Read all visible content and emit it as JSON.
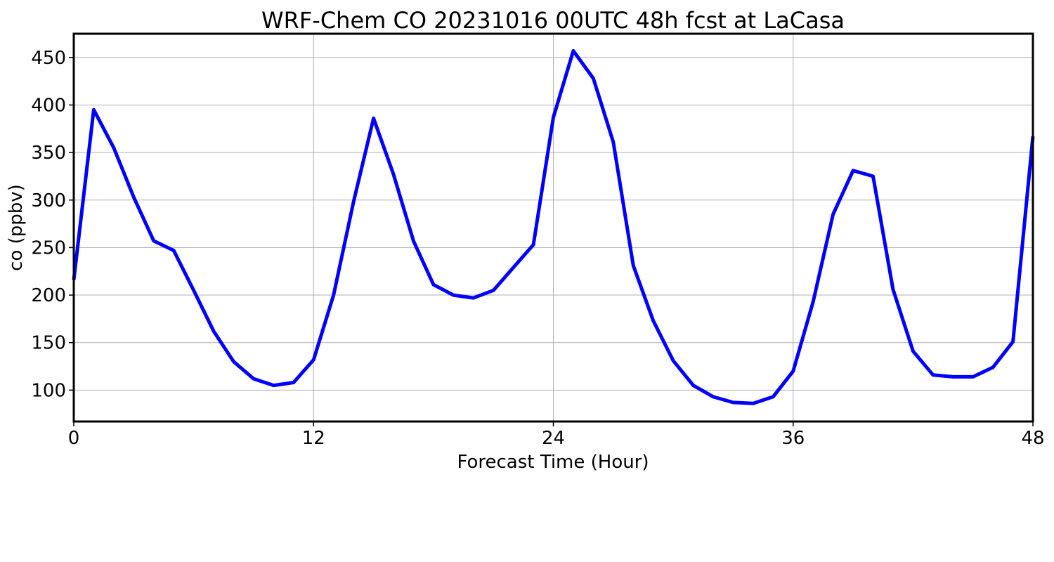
{
  "chart_data": {
    "type": "line",
    "title": "WRF-Chem CO  20231016 00UTC 48h fcst at LaCasa",
    "xlabel": "Forecast Time (Hour)",
    "ylabel": "co  (ppbv)",
    "xlim": [
      0,
      48
    ],
    "ylim": [
      67,
      475
    ],
    "x_ticks": [
      0,
      12,
      24,
      36,
      48
    ],
    "x_tick_labels": [
      "0",
      "12",
      "24",
      "36",
      "48"
    ],
    "y_ticks": [
      100,
      150,
      200,
      250,
      300,
      350,
      400,
      450
    ],
    "y_tick_labels": [
      "100",
      "150",
      "200",
      "250",
      "300",
      "350",
      "400",
      "450"
    ],
    "grid": true,
    "series": [
      {
        "color": "#0000ff",
        "x": [
          0,
          1,
          2,
          3,
          4,
          5,
          6,
          7,
          8,
          9,
          10,
          11,
          12,
          13,
          14,
          15,
          16,
          17,
          18,
          19,
          20,
          21,
          22,
          23,
          24,
          25,
          26,
          27,
          28,
          29,
          30,
          31,
          32,
          33,
          34,
          35,
          36,
          37,
          38,
          39,
          40,
          41,
          42,
          43,
          44,
          45,
          46,
          47,
          48
        ],
        "values": [
          216,
          395,
          355,
          303,
          257,
          247,
          205,
          162,
          130,
          112,
          105,
          108,
          132,
          200,
          298,
          386,
          327,
          257,
          211,
          200,
          197,
          205,
          229,
          253,
          387,
          457,
          428,
          361,
          231,
          173,
          131,
          105,
          93,
          87,
          86,
          93,
          120,
          193,
          285,
          331,
          325,
          206,
          141,
          116,
          114,
          114,
          124,
          151,
          367
        ]
      }
    ]
  }
}
